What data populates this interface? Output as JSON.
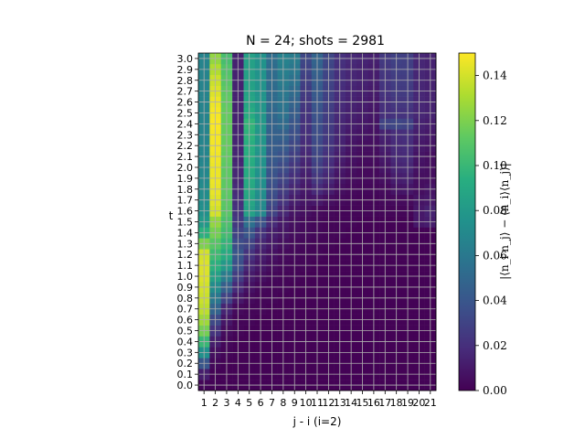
{
  "chart_data": {
    "type": "heatmap",
    "title": "N = 24; shots = 2981",
    "xlabel": "j - i (i=2)",
    "ylabel": "t",
    "x_categories": [
      "1",
      "2",
      "3",
      "4",
      "5",
      "6",
      "7",
      "8",
      "9",
      "10",
      "11",
      "12",
      "13",
      "14",
      "15",
      "16",
      "17",
      "18",
      "19",
      "20",
      "21"
    ],
    "y_categories": [
      "0.0",
      "0.1",
      "0.2",
      "0.3",
      "0.4",
      "0.5",
      "0.6",
      "0.7",
      "0.8",
      "0.9",
      "1.0",
      "1.1",
      "1.2",
      "1.3",
      "1.4",
      "1.5",
      "1.6",
      "1.7",
      "1.8",
      "1.9",
      "2.0",
      "2.1",
      "2.2",
      "2.3",
      "2.4",
      "2.5",
      "2.6",
      "2.7",
      "2.8",
      "2.9",
      "3.0"
    ],
    "colorbar": {
      "label": "|⟨n_i n_j⟩ − ⟨n_i⟩⟨n_j⟩|",
      "range": [
        0,
        0.15
      ],
      "ticks": [
        "0.00",
        "0.02",
        "0.04",
        "0.06",
        "0.08",
        "0.10",
        "0.12",
        "0.14"
      ],
      "colormap": "viridis"
    },
    "grid": true,
    "values": [
      [
        0.002,
        0.001,
        0.001,
        0.001,
        0.001,
        0.001,
        0.001,
        0.001,
        0.001,
        0.001,
        0.001,
        0.001,
        0.001,
        0.001,
        0.001,
        0.001,
        0.001,
        0.001,
        0.001,
        0.001,
        0.001
      ],
      [
        0.012,
        0.001,
        0.001,
        0.001,
        0.001,
        0.001,
        0.001,
        0.001,
        0.001,
        0.001,
        0.001,
        0.001,
        0.001,
        0.001,
        0.001,
        0.001,
        0.001,
        0.001,
        0.001,
        0.001,
        0.001
      ],
      [
        0.04,
        0.003,
        0.001,
        0.001,
        0.001,
        0.001,
        0.001,
        0.001,
        0.001,
        0.001,
        0.001,
        0.001,
        0.001,
        0.001,
        0.001,
        0.001,
        0.001,
        0.001,
        0.001,
        0.001,
        0.001
      ],
      [
        0.075,
        0.006,
        0.002,
        0.001,
        0.001,
        0.001,
        0.001,
        0.001,
        0.001,
        0.001,
        0.001,
        0.001,
        0.001,
        0.001,
        0.001,
        0.001,
        0.001,
        0.001,
        0.001,
        0.001,
        0.001
      ],
      [
        0.1,
        0.012,
        0.003,
        0.001,
        0.001,
        0.001,
        0.001,
        0.001,
        0.001,
        0.001,
        0.001,
        0.001,
        0.001,
        0.001,
        0.001,
        0.001,
        0.001,
        0.001,
        0.001,
        0.001,
        0.001
      ],
      [
        0.118,
        0.022,
        0.005,
        0.002,
        0.001,
        0.001,
        0.001,
        0.001,
        0.001,
        0.001,
        0.001,
        0.001,
        0.001,
        0.001,
        0.001,
        0.001,
        0.001,
        0.001,
        0.001,
        0.001,
        0.001
      ],
      [
        0.128,
        0.033,
        0.009,
        0.002,
        0.002,
        0.001,
        0.001,
        0.001,
        0.001,
        0.001,
        0.001,
        0.001,
        0.001,
        0.001,
        0.001,
        0.001,
        0.001,
        0.001,
        0.001,
        0.001,
        0.001
      ],
      [
        0.135,
        0.048,
        0.015,
        0.004,
        0.002,
        0.002,
        0.001,
        0.001,
        0.001,
        0.001,
        0.001,
        0.001,
        0.001,
        0.001,
        0.001,
        0.001,
        0.001,
        0.001,
        0.001,
        0.001,
        0.001
      ],
      [
        0.138,
        0.06,
        0.03,
        0.01,
        0.004,
        0.002,
        0.002,
        0.001,
        0.001,
        0.001,
        0.001,
        0.001,
        0.001,
        0.001,
        0.001,
        0.001,
        0.001,
        0.001,
        0.001,
        0.001,
        0.001
      ],
      [
        0.14,
        0.072,
        0.045,
        0.018,
        0.007,
        0.003,
        0.002,
        0.002,
        0.001,
        0.001,
        0.001,
        0.001,
        0.001,
        0.001,
        0.001,
        0.001,
        0.001,
        0.001,
        0.001,
        0.001,
        0.001
      ],
      [
        0.142,
        0.085,
        0.062,
        0.027,
        0.011,
        0.006,
        0.003,
        0.002,
        0.002,
        0.001,
        0.001,
        0.001,
        0.001,
        0.001,
        0.001,
        0.001,
        0.001,
        0.001,
        0.001,
        0.001,
        0.001
      ],
      [
        0.142,
        0.095,
        0.08,
        0.036,
        0.016,
        0.009,
        0.005,
        0.003,
        0.002,
        0.002,
        0.001,
        0.001,
        0.001,
        0.001,
        0.001,
        0.001,
        0.001,
        0.001,
        0.001,
        0.001,
        0.001
      ],
      [
        0.14,
        0.102,
        0.092,
        0.04,
        0.022,
        0.012,
        0.007,
        0.004,
        0.003,
        0.002,
        0.002,
        0.001,
        0.001,
        0.001,
        0.001,
        0.001,
        0.001,
        0.001,
        0.001,
        0.001,
        0.001
      ],
      [
        0.12,
        0.11,
        0.098,
        0.035,
        0.03,
        0.016,
        0.01,
        0.006,
        0.004,
        0.003,
        0.002,
        0.002,
        0.001,
        0.001,
        0.001,
        0.001,
        0.001,
        0.001,
        0.001,
        0.001,
        0.001
      ],
      [
        0.095,
        0.118,
        0.103,
        0.03,
        0.04,
        0.022,
        0.012,
        0.008,
        0.005,
        0.004,
        0.003,
        0.002,
        0.002,
        0.001,
        0.001,
        0.001,
        0.001,
        0.001,
        0.001,
        0.001,
        0.001
      ],
      [
        0.08,
        0.125,
        0.106,
        0.025,
        0.055,
        0.038,
        0.018,
        0.01,
        0.006,
        0.004,
        0.003,
        0.002,
        0.002,
        0.002,
        0.001,
        0.001,
        0.001,
        0.001,
        0.001,
        0.01,
        0.012
      ],
      [
        0.075,
        0.14,
        0.11,
        0.022,
        0.085,
        0.07,
        0.03,
        0.016,
        0.008,
        0.006,
        0.004,
        0.003,
        0.002,
        0.002,
        0.002,
        0.002,
        0.002,
        0.002,
        0.002,
        0.01,
        0.014
      ],
      [
        0.073,
        0.143,
        0.111,
        0.02,
        0.088,
        0.072,
        0.034,
        0.022,
        0.012,
        0.008,
        0.01,
        0.006,
        0.004,
        0.003,
        0.002,
        0.002,
        0.003,
        0.004,
        0.004,
        0.008,
        0.01
      ],
      [
        0.072,
        0.145,
        0.112,
        0.018,
        0.09,
        0.074,
        0.036,
        0.026,
        0.016,
        0.01,
        0.018,
        0.012,
        0.006,
        0.004,
        0.003,
        0.003,
        0.004,
        0.008,
        0.009,
        0.006,
        0.008
      ],
      [
        0.07,
        0.146,
        0.112,
        0.016,
        0.091,
        0.075,
        0.038,
        0.03,
        0.02,
        0.012,
        0.024,
        0.016,
        0.008,
        0.005,
        0.004,
        0.004,
        0.006,
        0.012,
        0.013,
        0.006,
        0.006
      ],
      [
        0.069,
        0.146,
        0.112,
        0.016,
        0.092,
        0.076,
        0.04,
        0.034,
        0.024,
        0.014,
        0.028,
        0.019,
        0.01,
        0.006,
        0.004,
        0.004,
        0.008,
        0.015,
        0.016,
        0.007,
        0.006
      ],
      [
        0.068,
        0.147,
        0.113,
        0.015,
        0.093,
        0.077,
        0.042,
        0.038,
        0.028,
        0.016,
        0.031,
        0.021,
        0.012,
        0.007,
        0.005,
        0.005,
        0.01,
        0.017,
        0.018,
        0.008,
        0.006
      ],
      [
        0.068,
        0.148,
        0.114,
        0.015,
        0.094,
        0.078,
        0.044,
        0.042,
        0.032,
        0.018,
        0.033,
        0.023,
        0.014,
        0.008,
        0.006,
        0.006,
        0.012,
        0.018,
        0.019,
        0.01,
        0.008
      ],
      [
        0.067,
        0.148,
        0.114,
        0.015,
        0.096,
        0.079,
        0.046,
        0.046,
        0.036,
        0.02,
        0.035,
        0.025,
        0.015,
        0.01,
        0.008,
        0.007,
        0.014,
        0.019,
        0.02,
        0.012,
        0.01
      ],
      [
        0.067,
        0.149,
        0.114,
        0.014,
        0.098,
        0.08,
        0.048,
        0.052,
        0.04,
        0.021,
        0.036,
        0.026,
        0.016,
        0.012,
        0.01,
        0.008,
        0.03,
        0.032,
        0.03,
        0.014,
        0.012
      ],
      [
        0.067,
        0.148,
        0.114,
        0.014,
        0.092,
        0.079,
        0.05,
        0.056,
        0.044,
        0.022,
        0.038,
        0.027,
        0.017,
        0.013,
        0.011,
        0.009,
        0.02,
        0.022,
        0.022,
        0.016,
        0.014
      ],
      [
        0.067,
        0.146,
        0.113,
        0.014,
        0.088,
        0.078,
        0.052,
        0.058,
        0.048,
        0.024,
        0.04,
        0.028,
        0.018,
        0.014,
        0.012,
        0.01,
        0.02,
        0.024,
        0.024,
        0.016,
        0.014
      ],
      [
        0.067,
        0.142,
        0.112,
        0.014,
        0.086,
        0.077,
        0.052,
        0.06,
        0.052,
        0.026,
        0.042,
        0.029,
        0.019,
        0.015,
        0.013,
        0.011,
        0.022,
        0.026,
        0.026,
        0.016,
        0.014
      ],
      [
        0.067,
        0.138,
        0.11,
        0.014,
        0.085,
        0.077,
        0.053,
        0.062,
        0.056,
        0.028,
        0.044,
        0.03,
        0.02,
        0.016,
        0.014,
        0.012,
        0.023,
        0.027,
        0.027,
        0.016,
        0.014
      ],
      [
        0.067,
        0.132,
        0.108,
        0.014,
        0.085,
        0.076,
        0.053,
        0.064,
        0.06,
        0.03,
        0.046,
        0.031,
        0.02,
        0.016,
        0.014,
        0.012,
        0.024,
        0.028,
        0.028,
        0.016,
        0.014
      ],
      [
        0.067,
        0.125,
        0.105,
        0.014,
        0.085,
        0.076,
        0.054,
        0.066,
        0.062,
        0.032,
        0.048,
        0.032,
        0.021,
        0.017,
        0.015,
        0.013,
        0.025,
        0.029,
        0.028,
        0.016,
        0.014
      ]
    ]
  }
}
